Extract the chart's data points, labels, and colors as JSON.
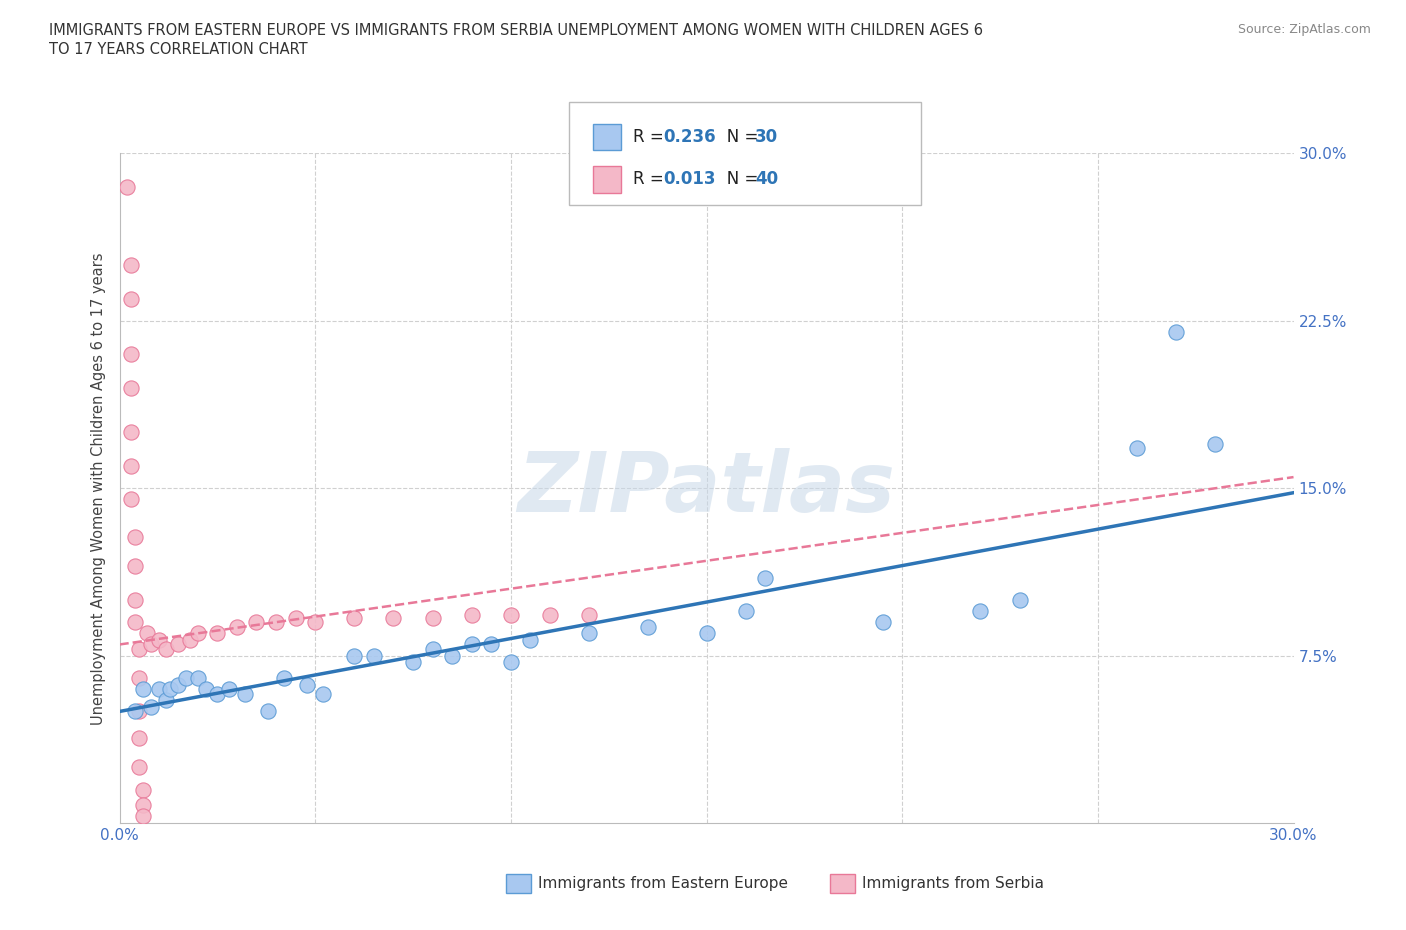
{
  "title_line1": "IMMIGRANTS FROM EASTERN EUROPE VS IMMIGRANTS FROM SERBIA UNEMPLOYMENT AMONG WOMEN WITH CHILDREN AGES 6",
  "title_line2": "TO 17 YEARS CORRELATION CHART",
  "source": "Source: ZipAtlas.com",
  "ylabel": "Unemployment Among Women with Children Ages 6 to 17 years",
  "xlim": [
    0.0,
    0.3
  ],
  "ylim": [
    0.0,
    0.3
  ],
  "xticks": [
    0.0,
    0.05,
    0.1,
    0.15,
    0.2,
    0.25,
    0.3
  ],
  "yticks": [
    0.0,
    0.075,
    0.15,
    0.225,
    0.3
  ],
  "blue_color": "#A8C8F0",
  "blue_edge_color": "#5B9BD5",
  "pink_color": "#F4B8C8",
  "pink_edge_color": "#E87898",
  "blue_line_color": "#2E75B6",
  "pink_line_color": "#E87898",
  "grid_color": "#D0D0D0",
  "watermark": "ZIPatlas",
  "scatter_blue": [
    [
      0.004,
      0.05
    ],
    [
      0.006,
      0.06
    ],
    [
      0.008,
      0.052
    ],
    [
      0.01,
      0.06
    ],
    [
      0.012,
      0.055
    ],
    [
      0.013,
      0.06
    ],
    [
      0.015,
      0.062
    ],
    [
      0.017,
      0.065
    ],
    [
      0.02,
      0.065
    ],
    [
      0.022,
      0.06
    ],
    [
      0.025,
      0.058
    ],
    [
      0.028,
      0.06
    ],
    [
      0.032,
      0.058
    ],
    [
      0.038,
      0.05
    ],
    [
      0.042,
      0.065
    ],
    [
      0.048,
      0.062
    ],
    [
      0.052,
      0.058
    ],
    [
      0.06,
      0.075
    ],
    [
      0.065,
      0.075
    ],
    [
      0.075,
      0.072
    ],
    [
      0.08,
      0.078
    ],
    [
      0.085,
      0.075
    ],
    [
      0.09,
      0.08
    ],
    [
      0.095,
      0.08
    ],
    [
      0.1,
      0.072
    ],
    [
      0.105,
      0.082
    ],
    [
      0.12,
      0.085
    ],
    [
      0.135,
      0.088
    ],
    [
      0.15,
      0.085
    ],
    [
      0.16,
      0.095
    ],
    [
      0.165,
      0.11
    ],
    [
      0.195,
      0.09
    ],
    [
      0.22,
      0.095
    ],
    [
      0.23,
      0.1
    ],
    [
      0.26,
      0.168
    ],
    [
      0.27,
      0.22
    ],
    [
      0.28,
      0.17
    ]
  ],
  "scatter_pink": [
    [
      0.002,
      0.285
    ],
    [
      0.003,
      0.25
    ],
    [
      0.003,
      0.235
    ],
    [
      0.003,
      0.21
    ],
    [
      0.003,
      0.195
    ],
    [
      0.003,
      0.175
    ],
    [
      0.003,
      0.16
    ],
    [
      0.003,
      0.145
    ],
    [
      0.004,
      0.128
    ],
    [
      0.004,
      0.115
    ],
    [
      0.004,
      0.1
    ],
    [
      0.004,
      0.09
    ],
    [
      0.005,
      0.078
    ],
    [
      0.005,
      0.065
    ],
    [
      0.005,
      0.05
    ],
    [
      0.005,
      0.038
    ],
    [
      0.005,
      0.025
    ],
    [
      0.006,
      0.015
    ],
    [
      0.006,
      0.008
    ],
    [
      0.006,
      0.003
    ],
    [
      0.007,
      0.085
    ],
    [
      0.008,
      0.08
    ],
    [
      0.01,
      0.082
    ],
    [
      0.012,
      0.078
    ],
    [
      0.015,
      0.08
    ],
    [
      0.018,
      0.082
    ],
    [
      0.02,
      0.085
    ],
    [
      0.025,
      0.085
    ],
    [
      0.03,
      0.088
    ],
    [
      0.035,
      0.09
    ],
    [
      0.04,
      0.09
    ],
    [
      0.045,
      0.092
    ],
    [
      0.05,
      0.09
    ],
    [
      0.06,
      0.092
    ],
    [
      0.07,
      0.092
    ],
    [
      0.08,
      0.092
    ],
    [
      0.09,
      0.093
    ],
    [
      0.1,
      0.093
    ],
    [
      0.11,
      0.093
    ],
    [
      0.12,
      0.093
    ]
  ],
  "blue_trendline": [
    [
      0.0,
      0.05
    ],
    [
      0.3,
      0.148
    ]
  ],
  "pink_trendline": [
    [
      0.0,
      0.08
    ],
    [
      0.3,
      0.155
    ]
  ]
}
